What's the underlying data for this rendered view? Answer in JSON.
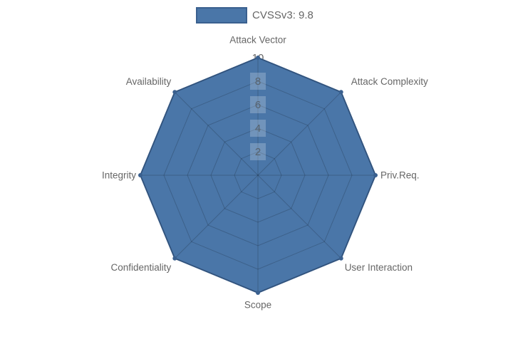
{
  "legend": {
    "label": "CVSSv3: 9.8",
    "swatch_fill": "#4a76a8",
    "swatch_border": "#3a608f"
  },
  "chart_data": {
    "type": "radar",
    "categories": [
      "Attack Vector",
      "Attack Complexity",
      "Priv.Req.",
      "User Interaction",
      "Scope",
      "Confidentiality",
      "Integrity",
      "Availability"
    ],
    "series": [
      {
        "name": "CVSSv3: 9.8",
        "values": [
          10,
          10,
          10,
          10,
          10,
          10,
          10,
          10
        ]
      }
    ],
    "rmin": 0,
    "rmax": 10,
    "ticks": [
      2,
      4,
      6,
      8,
      10
    ],
    "grid": "polygon",
    "legend_position": "top",
    "colors": {
      "fill": "#4a76a8",
      "border": "#3a608f",
      "grid_line": "rgba(0,0,0,0.18)",
      "label_text": "#666666",
      "tick_text_inner": "#57626d",
      "tick_text_outer": "#666666",
      "tick_backdrop_inner": "rgba(255,255,255,0.22)",
      "tick_backdrop_outer": "rgba(255,255,255,0.82)"
    }
  }
}
